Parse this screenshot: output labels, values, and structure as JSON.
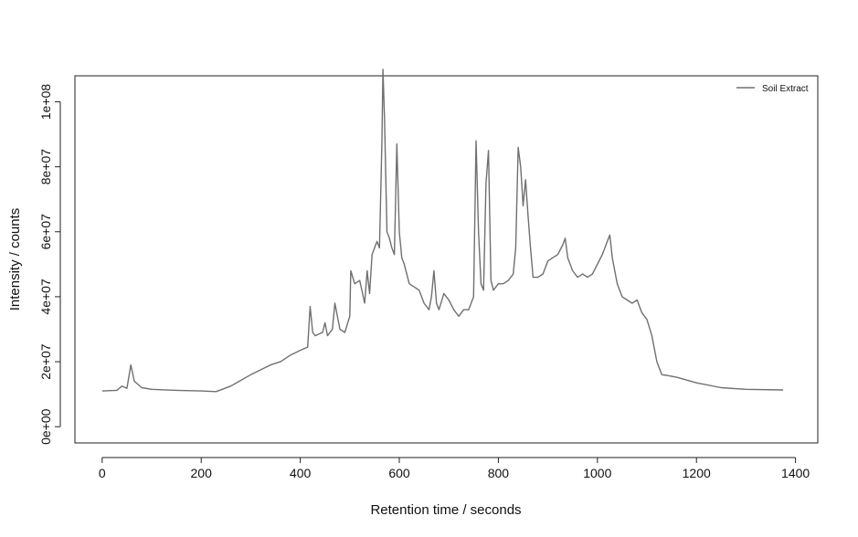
{
  "chart_data": {
    "type": "line",
    "xlabel": "Retention time / seconds",
    "ylabel": "Intensity / counts",
    "xlim": [
      -55,
      1445
    ],
    "ylim": [
      -5000000,
      108000000
    ],
    "x_ticks": [
      0,
      200,
      400,
      600,
      800,
      1000,
      1200,
      1400
    ],
    "x_tick_labels": [
      "0",
      "200",
      "400",
      "600",
      "800",
      "1000",
      "1200",
      "1400"
    ],
    "y_ticks": [
      0,
      20000000,
      40000000,
      60000000,
      80000000,
      100000000
    ],
    "y_tick_labels": [
      "0e+00",
      "2e+07",
      "4e+07",
      "6e+07",
      "8e+07",
      "1e+08"
    ],
    "grid": false,
    "legend": {
      "position": "top-right",
      "entries": [
        "Soil Extract"
      ]
    },
    "line_color": "#707070",
    "series": [
      {
        "name": "Soil Extract",
        "x": [
          0,
          30,
          40,
          50,
          58,
          65,
          80,
          100,
          150,
          200,
          230,
          260,
          300,
          340,
          360,
          380,
          400,
          415,
          420,
          425,
          430,
          445,
          450,
          455,
          465,
          470,
          480,
          490,
          500,
          502,
          510,
          520,
          530,
          535,
          540,
          545,
          550,
          555,
          560,
          565,
          567,
          570,
          575,
          580,
          585,
          590,
          595,
          600,
          605,
          610,
          620,
          630,
          640,
          650,
          660,
          665,
          670,
          675,
          680,
          690,
          700,
          710,
          720,
          730,
          740,
          745,
          750,
          755,
          760,
          765,
          770,
          775,
          780,
          785,
          790,
          800,
          810,
          820,
          830,
          835,
          840,
          845,
          850,
          855,
          860,
          865,
          870,
          880,
          890,
          900,
          910,
          920,
          930,
          935,
          940,
          950,
          960,
          970,
          980,
          990,
          1000,
          1010,
          1020,
          1025,
          1030,
          1040,
          1050,
          1060,
          1070,
          1080,
          1090,
          1100,
          1110,
          1120,
          1130,
          1140,
          1150,
          1160,
          1200,
          1250,
          1300,
          1375
        ],
        "values": [
          11000000,
          11200000,
          12500000,
          11800000,
          19000000,
          14000000,
          12000000,
          11500000,
          11200000,
          11000000,
          10800000,
          12500000,
          16000000,
          19000000,
          20000000,
          22000000,
          23500000,
          24500000,
          37000000,
          29000000,
          28000000,
          29000000,
          32000000,
          28000000,
          30000000,
          38000000,
          30000000,
          29000000,
          34000000,
          48000000,
          44000000,
          45000000,
          38000000,
          48000000,
          41000000,
          53000000,
          55000000,
          57000000,
          55000000,
          88000000,
          110000000,
          95000000,
          60000000,
          58000000,
          55000000,
          53000000,
          87000000,
          60000000,
          52000000,
          50000000,
          44000000,
          43000000,
          42000000,
          38000000,
          36000000,
          40000000,
          48000000,
          38000000,
          36000000,
          41000000,
          39000000,
          36000000,
          34000000,
          36000000,
          36000000,
          38000000,
          40000000,
          88000000,
          60000000,
          44000000,
          42000000,
          75000000,
          85000000,
          45000000,
          42000000,
          44000000,
          44000000,
          45000000,
          47000000,
          55000000,
          86000000,
          80000000,
          68000000,
          76000000,
          65000000,
          55000000,
          46000000,
          46000000,
          47000000,
          51000000,
          52000000,
          53000000,
          56000000,
          58000000,
          52000000,
          48000000,
          46000000,
          47000000,
          46000000,
          47000000,
          50000000,
          53000000,
          57000000,
          59000000,
          52000000,
          44000000,
          40000000,
          39000000,
          38000000,
          39000000,
          35000000,
          33000000,
          28000000,
          20000000,
          16000000,
          15800000,
          15500000,
          15200000,
          13500000,
          12000000,
          11500000,
          11300000
        ]
      }
    ]
  }
}
